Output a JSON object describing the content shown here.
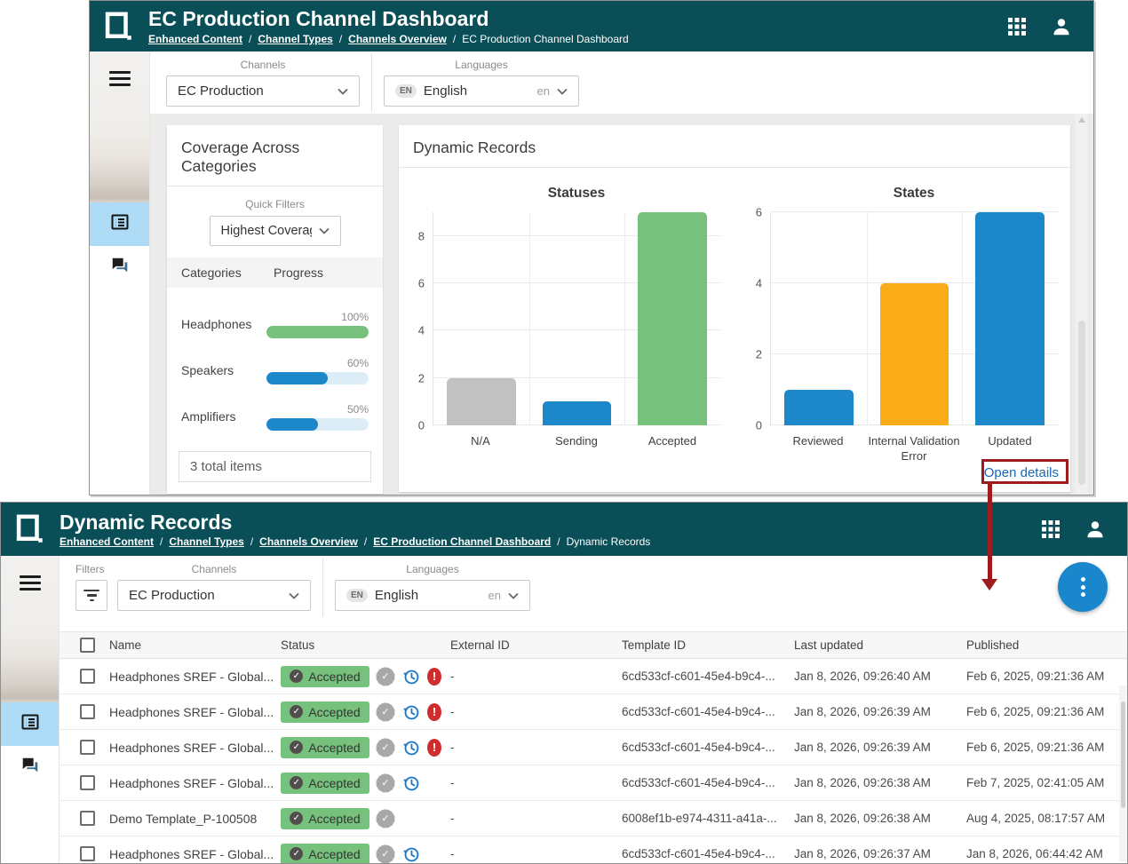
{
  "colors": {
    "header_teal": "#0a4e57",
    "sidebar_highlight": "#aedcf6",
    "bar_blue": "#1c87c9",
    "bar_green": "#77c17c",
    "bar_gray": "#c1c1c1",
    "bar_orange": "#f9ab18",
    "badge_green": "#76c27c",
    "error_red": "#d02e2e",
    "link_blue": "#1569b8",
    "fab_blue": "#1a87cc",
    "annotation_red": "#9e1b1e"
  },
  "dashboard": {
    "title": "EC Production Channel Dashboard",
    "breadcrumbs": [
      "Enhanced Content",
      "Channel Types",
      "Channels Overview",
      "EC Production Channel Dashboard"
    ],
    "filters": {
      "channels_label": "Channels",
      "channels_value": "EC Production",
      "languages_label": "Languages",
      "language_badge": "EN",
      "language_name": "English",
      "language_code": "en"
    },
    "coverage": {
      "title": "Coverage Across Categories",
      "quick_filters_label": "Quick Filters",
      "quick_filter_value": "Highest Coverage",
      "columns": [
        "Categories",
        "Progress"
      ],
      "items": [
        {
          "name": "Headphones",
          "percent": 100,
          "percent_label": "100%",
          "color": "#77c17c"
        },
        {
          "name": "Speakers",
          "percent": 60,
          "percent_label": "60%",
          "color": "#1c87c9"
        },
        {
          "name": "Amplifiers",
          "percent": 50,
          "percent_label": "50%",
          "color": "#1c87c9"
        }
      ],
      "footer": "3 total items"
    },
    "records_card": {
      "title": "Dynamic Records",
      "open_details": "Open details"
    }
  },
  "chart_data": [
    {
      "type": "bar",
      "title": "Statuses",
      "categories": [
        "N/A",
        "Sending",
        "Accepted"
      ],
      "values": [
        2,
        1,
        9
      ],
      "colors": [
        "#c1c1c1",
        "#1c87c9",
        "#77c17c"
      ],
      "ylim": [
        0,
        9
      ],
      "yticks": [
        0,
        2,
        4,
        6,
        8
      ],
      "grid": true,
      "legend": false
    },
    {
      "type": "bar",
      "title": "States",
      "categories": [
        "Reviewed",
        "Internal Validation Error",
        "Updated"
      ],
      "values": [
        1,
        4,
        6
      ],
      "colors": [
        "#1c87c9",
        "#f9ab18",
        "#1c87c9"
      ],
      "ylim": [
        0,
        6
      ],
      "yticks": [
        0,
        2,
        4,
        6
      ],
      "grid": true,
      "legend": false
    }
  ],
  "records": {
    "title": "Dynamic Records",
    "breadcrumbs": [
      "Enhanced Content",
      "Channel Types",
      "Channels Overview",
      "EC Production Channel Dashboard",
      "Dynamic Records"
    ],
    "filters": {
      "filters_label": "Filters",
      "channels_label": "Channels",
      "channels_value": "EC Production",
      "languages_label": "Languages",
      "language_badge": "EN",
      "language_name": "English",
      "language_code": "en"
    },
    "table": {
      "columns": [
        "Name",
        "Status",
        "External ID",
        "Template ID",
        "Last updated",
        "Published"
      ],
      "rows": [
        {
          "name": "Headphones SREF - Global...",
          "status": "Accepted",
          "icons": [
            "verified",
            "history",
            "error"
          ],
          "external_id": "-",
          "template_id": "6cd533cf-c601-45e4-b9c4-...",
          "last_updated": "Jan 8, 2026, 09:26:40 AM",
          "published": "Feb 6, 2025, 09:21:36 AM"
        },
        {
          "name": "Headphones SREF - Global...",
          "status": "Accepted",
          "icons": [
            "verified",
            "history",
            "error"
          ],
          "external_id": "-",
          "template_id": "6cd533cf-c601-45e4-b9c4-...",
          "last_updated": "Jan 8, 2026, 09:26:39 AM",
          "published": "Feb 6, 2025, 09:21:36 AM"
        },
        {
          "name": "Headphones SREF - Global...",
          "status": "Accepted",
          "icons": [
            "verified",
            "history",
            "error"
          ],
          "external_id": "-",
          "template_id": "6cd533cf-c601-45e4-b9c4-...",
          "last_updated": "Jan 8, 2026, 09:26:39 AM",
          "published": "Feb 6, 2025, 09:21:36 AM"
        },
        {
          "name": "Headphones SREF - Global...",
          "status": "Accepted",
          "icons": [
            "verified",
            "history"
          ],
          "external_id": "-",
          "template_id": "6cd533cf-c601-45e4-b9c4-...",
          "last_updated": "Jan 8, 2026, 09:26:38 AM",
          "published": "Feb 7, 2025, 02:41:05 AM"
        },
        {
          "name": "Demo Template_P-100508",
          "status": "Accepted",
          "icons": [
            "verified"
          ],
          "external_id": "-",
          "template_id": "6008ef1b-e974-4311-a41a-...",
          "last_updated": "Jan 8, 2026, 09:26:38 AM",
          "published": "Aug 4, 2025, 08:17:57 AM"
        },
        {
          "name": "Headphones SREF - Global...",
          "status": "Accepted",
          "icons": [
            "verified",
            "history"
          ],
          "external_id": "-",
          "template_id": "6cd533cf-c601-45e4-b9c4-...",
          "last_updated": "Jan 8, 2026, 09:26:37 AM",
          "published": "Jan 8, 2026, 06:44:42 AM"
        }
      ]
    }
  },
  "annotation": {
    "highlighted_text": "Open details"
  }
}
